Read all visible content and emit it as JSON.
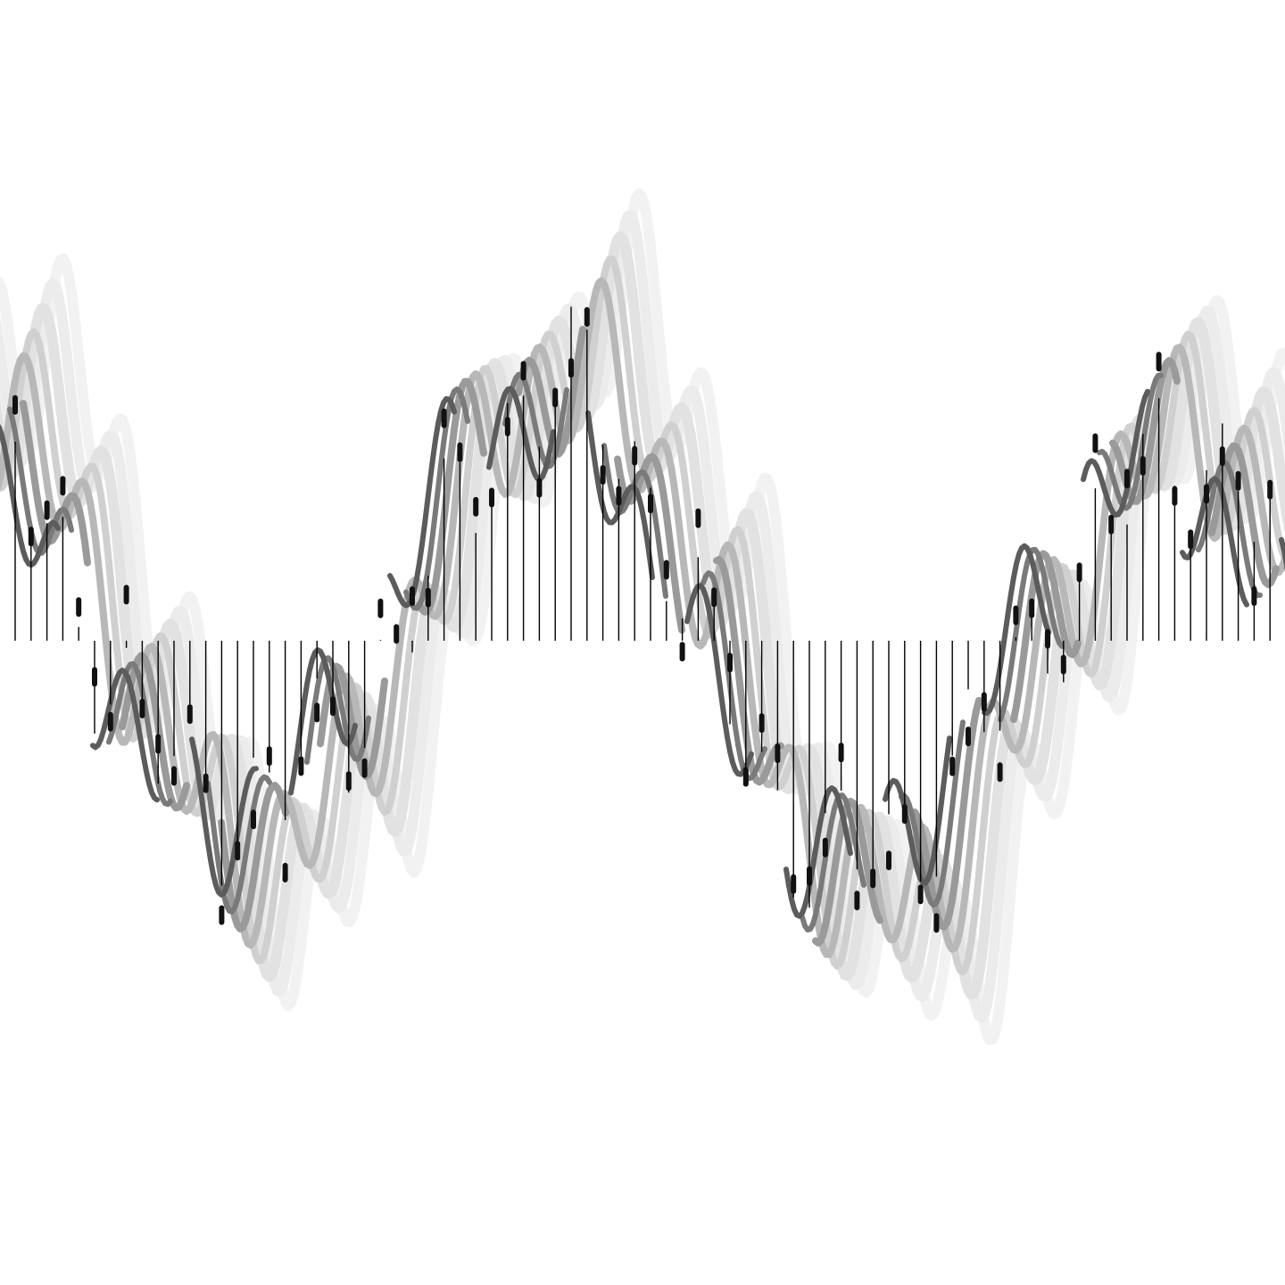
{
  "artwork": {
    "background_color": "#ffffff",
    "baseline_color": "#000000",
    "echo_colors": [
      "#f2f2f2",
      "#ececec",
      "#e2e2e2",
      "#d0d0d0",
      "#b8b8b8",
      "#9a9a9a",
      "#7a7a7a",
      "#5c5c5c"
    ],
    "marker_color": "#111111"
  }
}
